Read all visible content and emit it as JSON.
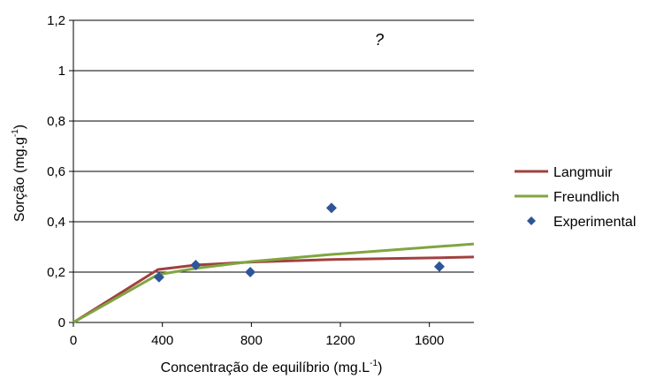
{
  "chart_data": {
    "type": "line",
    "annotation": "?",
    "xlabel_main": "Concentração de equilíbrio (mg.L",
    "xlabel_sup": "-1",
    "xlabel_end": ")",
    "ylabel_main": "Sorção (mg.g",
    "ylabel_sup": "-1",
    "ylabel_end": ")",
    "xlim": [
      0,
      1800
    ],
    "ylim": [
      0,
      1.2
    ],
    "x_ticks": [
      0,
      400,
      800,
      1200,
      1600
    ],
    "x_tick_labels": [
      "0",
      "400",
      "800",
      "1200",
      "1600"
    ],
    "y_ticks": [
      0,
      0.2,
      0.4,
      0.6,
      0.8,
      1.0,
      1.2
    ],
    "y_tick_labels": [
      "0",
      "0,2",
      "0,4",
      "0,6",
      "0,8",
      "1",
      "1,2"
    ],
    "grid": "horizontal",
    "legend_position": "right",
    "series": [
      {
        "name": "Langmuir",
        "kind": "line",
        "color": "#A0413F",
        "x": [
          0,
          380,
          550,
          800,
          1160,
          1650,
          1800
        ],
        "y": [
          0,
          0.21,
          0.228,
          0.24,
          0.25,
          0.257,
          0.26
        ]
      },
      {
        "name": "Freundlich",
        "kind": "line",
        "color": "#7FA640",
        "x": [
          0,
          380,
          550,
          800,
          1160,
          1650,
          1800
        ],
        "y": [
          0,
          0.19,
          0.215,
          0.242,
          0.27,
          0.302,
          0.312
        ]
      },
      {
        "name": "Experimental",
        "kind": "marker",
        "color": "#2F5597",
        "x": [
          385,
          550,
          795,
          1160,
          1645
        ],
        "y": [
          0.18,
          0.228,
          0.2,
          0.455,
          0.222
        ]
      }
    ]
  }
}
